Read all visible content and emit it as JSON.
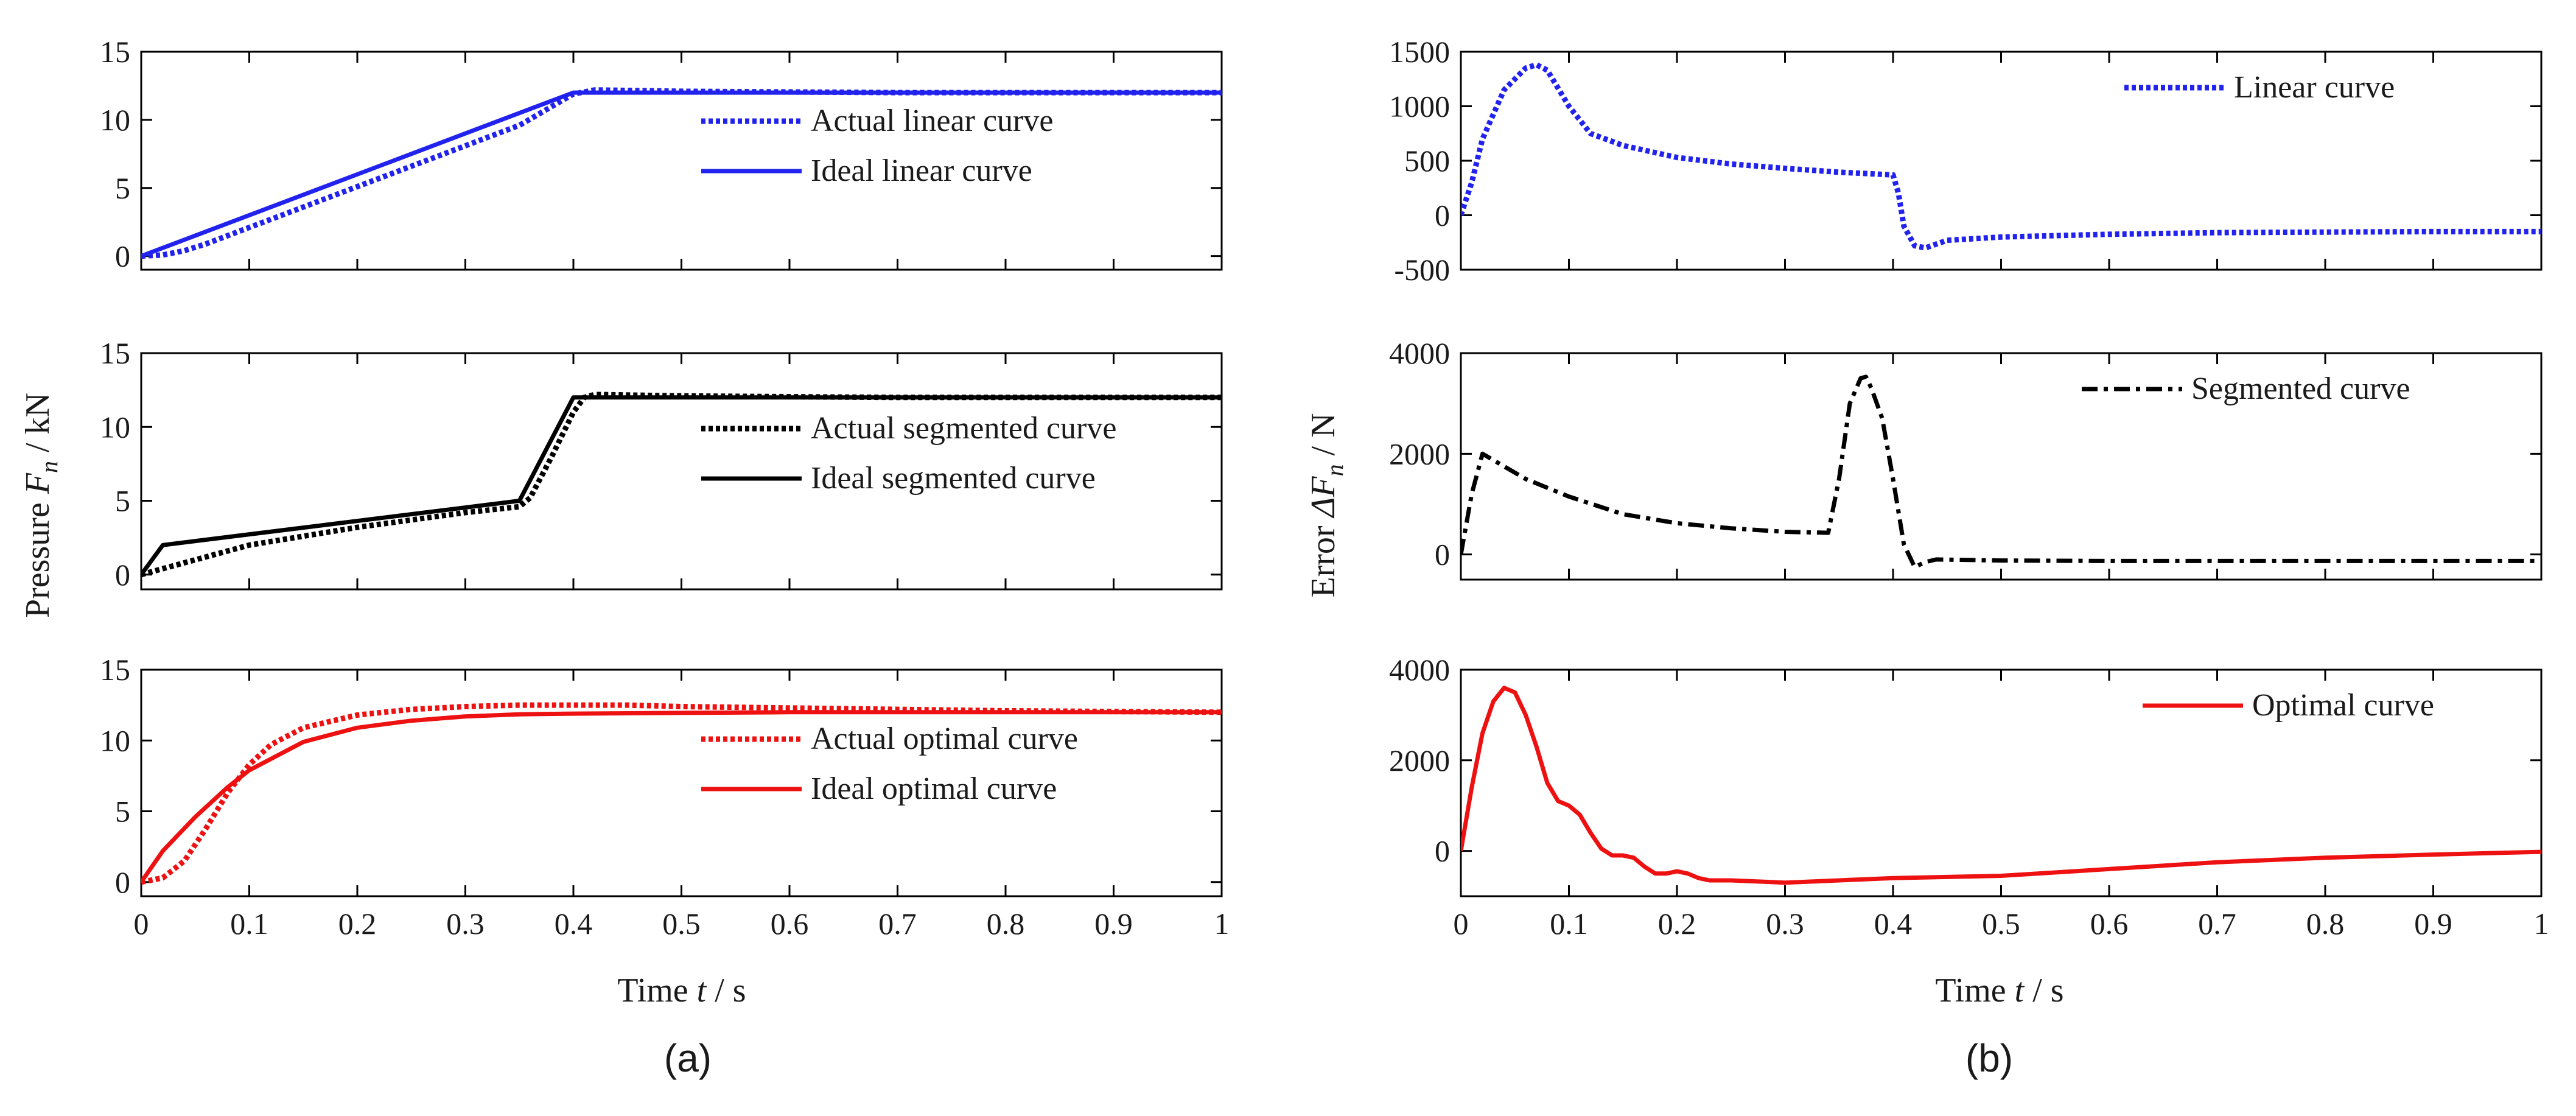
{
  "figure": {
    "panel_a_label": "(a)",
    "panel_b_label": "(b)",
    "a_xlabel": {
      "prefix": "Time ",
      "var": "t",
      "suffix": " / s"
    },
    "b_xlabel": {
      "prefix": "Time ",
      "var": "t",
      "suffix": " / s"
    },
    "a_ylabel": {
      "prefix": "Pressure ",
      "var": "F",
      "sub": "n",
      "suffix": " / kN"
    },
    "b_ylabel": {
      "prefix": "Error ",
      "delta": "Δ",
      "var": "F",
      "sub": "n",
      "suffix": " / N"
    }
  },
  "chart_data": [
    {
      "id": "a1",
      "type": "line",
      "panel": "a",
      "xlim": [
        0,
        1
      ],
      "ylim": [
        -1,
        15
      ],
      "yticks": [
        0,
        5,
        10,
        15
      ],
      "xticks": [],
      "legend_position": "center-right",
      "series": [
        {
          "name": "Actual linear curve",
          "color": "#2222ee",
          "style": "dotted",
          "x": [
            0,
            0.02,
            0.04,
            0.06,
            0.08,
            0.1,
            0.15,
            0.2,
            0.25,
            0.3,
            0.35,
            0.4,
            0.42,
            0.5,
            0.7,
            1.0
          ],
          "y": [
            0,
            0.08,
            0.4,
            0.9,
            1.5,
            2.1,
            3.6,
            5.1,
            6.6,
            8.1,
            9.6,
            11.9,
            12.2,
            12.1,
            12.0,
            12.0
          ]
        },
        {
          "name": "Ideal linear curve",
          "color": "#2222ee",
          "style": "solid",
          "x": [
            0,
            0.4,
            1.0
          ],
          "y": [
            0,
            12,
            12
          ]
        }
      ]
    },
    {
      "id": "a2",
      "type": "line",
      "panel": "a",
      "xlim": [
        0,
        1
      ],
      "ylim": [
        -1,
        15
      ],
      "yticks": [
        0,
        5,
        10,
        15
      ],
      "xticks": [],
      "legend_position": "center-right",
      "series": [
        {
          "name": "Actual segmented curve",
          "color": "#000000",
          "style": "dotted",
          "x": [
            0,
            0.02,
            0.05,
            0.1,
            0.15,
            0.2,
            0.25,
            0.3,
            0.35,
            0.36,
            0.38,
            0.4,
            0.41,
            0.42,
            0.5,
            0.7,
            1.0
          ],
          "y": [
            0,
            0.4,
            1.0,
            2.0,
            2.6,
            3.2,
            3.7,
            4.2,
            4.6,
            5.2,
            8.0,
            11.0,
            12.0,
            12.2,
            12.1,
            12.0,
            12.0
          ]
        },
        {
          "name": "Ideal segmented curve",
          "color": "#000000",
          "style": "solid",
          "x": [
            0,
            0.02,
            0.35,
            0.4,
            1.0
          ],
          "y": [
            0,
            2,
            5,
            12,
            12
          ]
        }
      ]
    },
    {
      "id": "a3",
      "type": "line",
      "panel": "a",
      "xlim": [
        0,
        1
      ],
      "ylim": [
        -1,
        15
      ],
      "yticks": [
        0,
        5,
        10,
        15
      ],
      "xticks": [
        0,
        0.1,
        0.2,
        0.3,
        0.4,
        0.5,
        0.6,
        0.7,
        0.8,
        0.9,
        1
      ],
      "xticklabels": [
        "0",
        "0.1",
        "0.2",
        "0.3",
        "0.4",
        "0.5",
        "0.6",
        "0.7",
        "0.8",
        "0.9",
        "1"
      ],
      "legend_position": "center-right",
      "series": [
        {
          "name": "Actual optimal curve",
          "color": "#ee1111",
          "style": "dotted",
          "x": [
            0,
            0.02,
            0.04,
            0.06,
            0.08,
            0.1,
            0.12,
            0.15,
            0.2,
            0.25,
            0.3,
            0.35,
            0.4,
            0.45,
            0.5,
            0.6,
            0.7,
            0.8,
            0.9,
            1.0
          ],
          "y": [
            0,
            0.3,
            1.5,
            3.8,
            6.3,
            8.3,
            9.7,
            10.9,
            11.8,
            12.2,
            12.4,
            12.5,
            12.5,
            12.5,
            12.4,
            12.3,
            12.2,
            12.1,
            12.05,
            12.0
          ]
        },
        {
          "name": "Ideal optimal curve",
          "color": "#ee1111",
          "style": "solid",
          "x": [
            0,
            0.02,
            0.05,
            0.08,
            0.1,
            0.15,
            0.2,
            0.25,
            0.3,
            0.35,
            0.4,
            0.5,
            0.6,
            0.8,
            1.0
          ],
          "y": [
            0,
            2.2,
            4.6,
            6.7,
            7.9,
            9.9,
            10.9,
            11.4,
            11.7,
            11.85,
            11.9,
            11.95,
            12.0,
            12.0,
            12.0
          ]
        }
      ]
    },
    {
      "id": "b1",
      "type": "line",
      "panel": "b",
      "xlim": [
        0,
        1
      ],
      "ylim": [
        -500,
        1500
      ],
      "yticks": [
        -500,
        0,
        500,
        1000,
        1500
      ],
      "xticks": [],
      "legend_position": "top-right",
      "series": [
        {
          "name": "Linear curve",
          "color": "#2222ee",
          "style": "dotted",
          "x": [
            0,
            0.01,
            0.02,
            0.04,
            0.06,
            0.07,
            0.08,
            0.1,
            0.12,
            0.15,
            0.2,
            0.25,
            0.3,
            0.35,
            0.4,
            0.405,
            0.41,
            0.42,
            0.43,
            0.45,
            0.5,
            0.6,
            0.7,
            0.8,
            0.9,
            1.0
          ],
          "y": [
            0,
            300,
            700,
            1150,
            1350,
            1380,
            1330,
            1000,
            750,
            640,
            530,
            470,
            430,
            395,
            370,
            200,
            -100,
            -280,
            -300,
            -230,
            -200,
            -175,
            -160,
            -155,
            -150,
            -150
          ]
        }
      ]
    },
    {
      "id": "b2",
      "type": "line",
      "panel": "b",
      "xlim": [
        0,
        1
      ],
      "ylim": [
        -500,
        4000
      ],
      "yticks": [
        0,
        2000,
        4000
      ],
      "xticks": [],
      "legend_position": "top-right",
      "series": [
        {
          "name": "Segmented curve",
          "color": "#000000",
          "style": "dashdot",
          "x": [
            0,
            0.01,
            0.02,
            0.04,
            0.06,
            0.1,
            0.15,
            0.2,
            0.25,
            0.3,
            0.34,
            0.35,
            0.36,
            0.37,
            0.375,
            0.38,
            0.39,
            0.4,
            0.41,
            0.42,
            0.43,
            0.44,
            0.5,
            0.6,
            0.8,
            1.0
          ],
          "y": [
            0,
            1200,
            2000,
            1750,
            1500,
            1150,
            800,
            620,
            520,
            450,
            430,
            1500,
            3000,
            3500,
            3530,
            3300,
            2700,
            1500,
            200,
            -250,
            -150,
            -100,
            -120,
            -130,
            -130,
            -130
          ]
        }
      ]
    },
    {
      "id": "b3",
      "type": "line",
      "panel": "b",
      "xlim": [
        0,
        1
      ],
      "ylim": [
        -1000,
        4000
      ],
      "yticks": [
        0,
        2000,
        4000
      ],
      "xticks": [
        0,
        0.1,
        0.2,
        0.3,
        0.4,
        0.5,
        0.6,
        0.7,
        0.8,
        0.9,
        1
      ],
      "xticklabels": [
        "0",
        "0.1",
        "0.2",
        "0.3",
        "0.4",
        "0.5",
        "0.6",
        "0.7",
        "0.8",
        "0.9",
        "1"
      ],
      "legend_position": "top-right",
      "series": [
        {
          "name": "Optimal curve",
          "color": "#ee1111",
          "style": "solid",
          "x": [
            0,
            0.01,
            0.02,
            0.03,
            0.04,
            0.05,
            0.06,
            0.07,
            0.08,
            0.09,
            0.1,
            0.11,
            0.12,
            0.13,
            0.14,
            0.15,
            0.16,
            0.17,
            0.18,
            0.19,
            0.2,
            0.21,
            0.22,
            0.23,
            0.24,
            0.25,
            0.3,
            0.35,
            0.4,
            0.5,
            0.6,
            0.7,
            0.8,
            0.9,
            1.0
          ],
          "y": [
            0,
            1400,
            2600,
            3300,
            3600,
            3500,
            3000,
            2300,
            1500,
            1100,
            1000,
            800,
            400,
            50,
            -100,
            -100,
            -150,
            -350,
            -500,
            -500,
            -450,
            -500,
            -600,
            -650,
            -650,
            -650,
            -700,
            -650,
            -600,
            -550,
            -400,
            -250,
            -150,
            -80,
            -20
          ]
        }
      ]
    }
  ]
}
